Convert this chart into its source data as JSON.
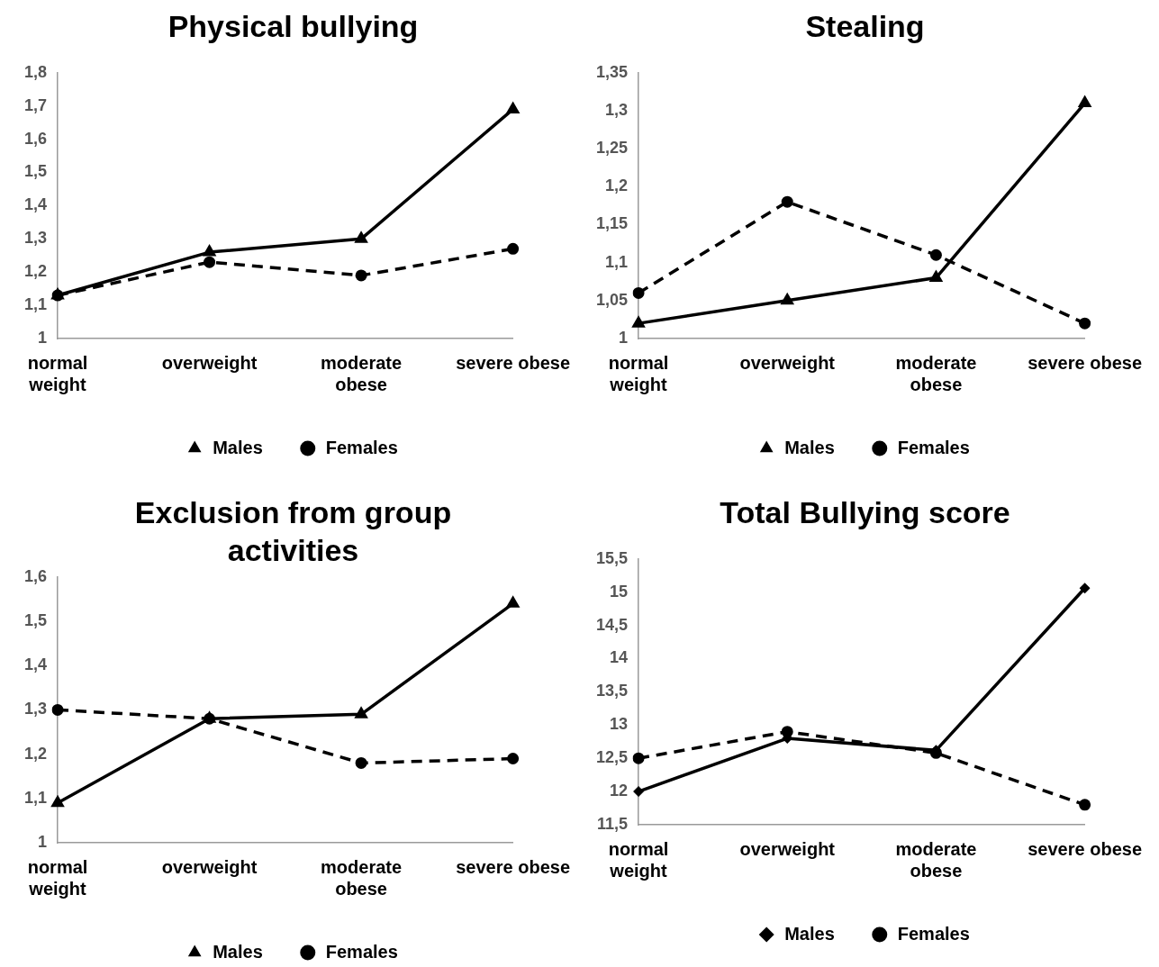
{
  "chart_data": [
    {
      "type": "line",
      "title": "Physical bullying",
      "categories": [
        "normal weight",
        "overweight",
        "moderate obese",
        "severe obese"
      ],
      "ylim": [
        1,
        1.8
      ],
      "yticks": [
        {
          "value": 1,
          "label": "1"
        },
        {
          "value": 1.1,
          "label": "1,1"
        },
        {
          "value": 1.2,
          "label": "1,2"
        },
        {
          "value": 1.3,
          "label": "1,3"
        },
        {
          "value": 1.4,
          "label": "1,4"
        },
        {
          "value": 1.5,
          "label": "1,5"
        },
        {
          "value": 1.6,
          "label": "1,6"
        },
        {
          "value": 1.7,
          "label": "1,7"
        },
        {
          "value": 1.8,
          "label": "1,8"
        }
      ],
      "grid": false,
      "legend": "bottom",
      "series": [
        {
          "name": "Males",
          "color": "#000000",
          "marker": "triangle",
          "line_style": "solid",
          "values": [
            1.13,
            1.26,
            1.3,
            1.69
          ]
        },
        {
          "name": "Females",
          "color": "#000000",
          "marker": "circle",
          "line_style": "dashed",
          "values": [
            1.13,
            1.23,
            1.19,
            1.27
          ]
        }
      ]
    },
    {
      "type": "line",
      "title": "Stealing",
      "categories": [
        "normal weight",
        "overweight",
        "moderate obese",
        "severe obese"
      ],
      "ylim": [
        1,
        1.35
      ],
      "yticks": [
        {
          "value": 1,
          "label": "1"
        },
        {
          "value": 1.05,
          "label": "1,05"
        },
        {
          "value": 1.1,
          "label": "1,1"
        },
        {
          "value": 1.15,
          "label": "1,15"
        },
        {
          "value": 1.2,
          "label": "1,2"
        },
        {
          "value": 1.25,
          "label": "1,25"
        },
        {
          "value": 1.3,
          "label": "1,3"
        },
        {
          "value": 1.35,
          "label": "1,35"
        }
      ],
      "grid": false,
      "legend": "bottom",
      "series": [
        {
          "name": "Males",
          "color": "#000000",
          "marker": "triangle",
          "line_style": "solid",
          "values": [
            1.02,
            1.05,
            1.08,
            1.31
          ]
        },
        {
          "name": "Females",
          "color": "#000000",
          "marker": "circle",
          "line_style": "dashed",
          "values": [
            1.06,
            1.18,
            1.11,
            1.02
          ]
        }
      ]
    },
    {
      "type": "line",
      "title": "Exclusion from group activities",
      "categories": [
        "normal weight",
        "overweight",
        "moderate obese",
        "severe obese"
      ],
      "ylim": [
        1,
        1.6
      ],
      "yticks": [
        {
          "value": 1,
          "label": "1"
        },
        {
          "value": 1.1,
          "label": "1,1"
        },
        {
          "value": 1.2,
          "label": "1,2"
        },
        {
          "value": 1.3,
          "label": "1,3"
        },
        {
          "value": 1.4,
          "label": "1,4"
        },
        {
          "value": 1.5,
          "label": "1,5"
        },
        {
          "value": 1.6,
          "label": "1,6"
        }
      ],
      "grid": false,
      "legend": "bottom",
      "series": [
        {
          "name": "Males",
          "color": "#000000",
          "marker": "triangle",
          "line_style": "solid",
          "values": [
            1.09,
            1.28,
            1.29,
            1.54
          ]
        },
        {
          "name": "Females",
          "color": "#000000",
          "marker": "circle",
          "line_style": "dashed",
          "values": [
            1.3,
            1.28,
            1.18,
            1.19
          ]
        }
      ]
    },
    {
      "type": "line",
      "title": "Total Bullying score",
      "categories": [
        "normal weight",
        "overweight",
        "moderate obese",
        "severe obese"
      ],
      "ylim": [
        11.5,
        15.5
      ],
      "yticks": [
        {
          "value": 11.5,
          "label": "11,5"
        },
        12,
        {
          "value": 12.5,
          "label": "12,5"
        },
        13,
        {
          "value": 13.5,
          "label": "13,5"
        },
        14,
        {
          "value": 14.5,
          "label": "14,5"
        },
        15,
        {
          "value": 15.5,
          "label": "15,5"
        }
      ],
      "grid": false,
      "legend": "bottom",
      "series": [
        {
          "name": "Males",
          "color": "#000000",
          "marker": "diamond",
          "line_style": "solid",
          "values": [
            12.0,
            12.8,
            12.62,
            15.06
          ]
        },
        {
          "name": "Females",
          "color": "#000000",
          "marker": "circle",
          "line_style": "dashed",
          "values": [
            12.5,
            12.9,
            12.58,
            11.8
          ]
        }
      ]
    }
  ]
}
